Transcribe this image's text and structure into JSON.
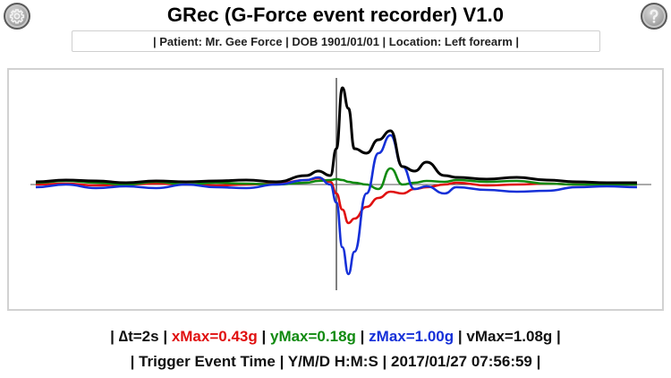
{
  "header": {
    "title": "GRec (G-Force event recorder) V1.0",
    "settings_icon": "gear-icon",
    "help_icon": "question-mark-icon",
    "patient_info": "| Patient: Mr. Gee Force | DOB 1901/01/01 | Location: Left forearm |"
  },
  "stats": {
    "sep": "|",
    "dt": "∆t=2s",
    "xmax": "xMax=0.43g",
    "ymax": "yMax=0.18g",
    "zmax": "zMax=1.00g",
    "vmax": "vMax=1.08g",
    "trigger_label": "Trigger Event Time",
    "format_label": "Y/M/D H:M:S",
    "timestamp": "2017/01/27 07:56:59"
  },
  "colors": {
    "x": "#e01010",
    "y": "#108a10",
    "z": "#1530d8",
    "v": "#000000",
    "axis": "#555555"
  },
  "chart_data": {
    "type": "line",
    "title": "",
    "xlabel": "",
    "ylabel": "",
    "grid": false,
    "legend": "none (colors identified in stats line below chart)",
    "x_unit": "seconds relative to trigger",
    "trigger_x": 0,
    "x": [
      -5.0,
      -4.5,
      -4.0,
      -3.5,
      -3.0,
      -2.5,
      -2.0,
      -1.5,
      -1.0,
      -0.5,
      -0.3,
      -0.1,
      0.0,
      0.1,
      0.2,
      0.3,
      0.5,
      0.7,
      0.9,
      1.1,
      1.3,
      1.5,
      1.8,
      2.0,
      2.5,
      3.0,
      3.5,
      4.0,
      4.5,
      5.0
    ],
    "series": [
      {
        "name": "x",
        "color": "#e01010",
        "values": [
          0.0,
          0.01,
          -0.01,
          0.0,
          0.01,
          0.0,
          -0.01,
          0.0,
          0.01,
          0.05,
          0.07,
          0.03,
          -0.1,
          -0.28,
          -0.43,
          -0.38,
          -0.25,
          -0.15,
          -0.08,
          -0.1,
          -0.05,
          -0.03,
          0.0,
          0.02,
          -0.01,
          0.0,
          0.01,
          0.0,
          0.0,
          0.0
        ]
      },
      {
        "name": "y",
        "color": "#108a10",
        "values": [
          0.02,
          0.04,
          0.02,
          0.0,
          0.03,
          0.0,
          0.02,
          0.01,
          0.0,
          0.02,
          0.04,
          0.05,
          0.06,
          0.05,
          0.03,
          0.02,
          0.0,
          -0.05,
          0.18,
          0.0,
          0.02,
          0.04,
          0.03,
          0.05,
          0.03,
          0.04,
          0.01,
          0.0,
          0.0,
          0.0
        ]
      },
      {
        "name": "z",
        "color": "#1530d8",
        "values": [
          -0.03,
          0.0,
          -0.04,
          -0.02,
          -0.04,
          0.0,
          -0.03,
          -0.04,
          0.0,
          0.05,
          0.08,
          0.0,
          -0.2,
          -0.7,
          -1.0,
          -0.75,
          -0.1,
          0.35,
          0.55,
          0.2,
          -0.05,
          -0.02,
          -0.1,
          -0.03,
          -0.06,
          -0.08,
          -0.07,
          -0.03,
          -0.02,
          -0.03
        ]
      },
      {
        "name": "v",
        "color": "#000000",
        "values": [
          0.03,
          0.05,
          0.04,
          0.02,
          0.04,
          0.03,
          0.04,
          0.05,
          0.03,
          0.1,
          0.15,
          0.1,
          0.4,
          1.08,
          0.85,
          0.4,
          0.35,
          0.5,
          0.6,
          0.2,
          0.15,
          0.25,
          0.1,
          0.08,
          0.06,
          0.08,
          0.05,
          0.03,
          0.02,
          0.02
        ]
      }
    ],
    "xlim": [
      -5.5,
      5.5
    ],
    "ylim": [
      -1.2,
      1.2
    ],
    "annotations": [
      "vertical trigger line at t=0",
      "horizontal baseline at 0 g"
    ],
    "summary": {
      "dt": "2s",
      "xMax_g": 0.43,
      "yMax_g": 0.18,
      "zMax_g": 1.0,
      "vMax_g": 1.08
    }
  }
}
